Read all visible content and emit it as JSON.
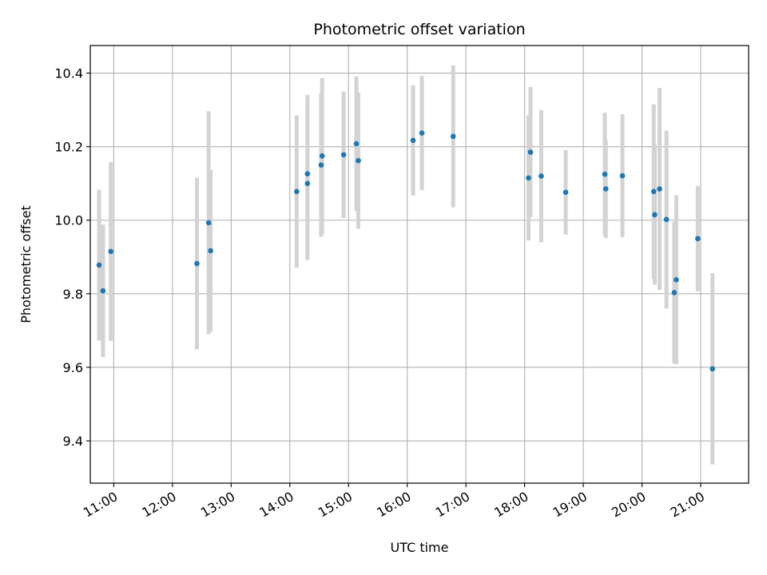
{
  "chart_data": {
    "type": "scatter",
    "title": "Photometric offset variation",
    "xlabel": "UTC time",
    "ylabel": "Photometric offset",
    "xlim": [
      "10:36",
      "21:49"
    ],
    "ylim": [
      9.285,
      10.475
    ],
    "grid": true,
    "x_ticks": [
      "11:00",
      "12:00",
      "13:00",
      "14:00",
      "15:00",
      "16:00",
      "17:00",
      "18:00",
      "19:00",
      "20:00",
      "21:00"
    ],
    "y_ticks": [
      "9.4",
      "9.6",
      "9.8",
      "10.0",
      "10.2",
      "10.4"
    ],
    "colors": {
      "points": "#1f77b4",
      "error_bars": "#d3d3d3",
      "grid": "#b0b0b0"
    },
    "series": [
      {
        "x": [
          "10:45",
          "10:49",
          "10:57",
          "12:25",
          "12:37",
          "12:39",
          "14:07",
          "14:18",
          "14:18",
          "14:32",
          "14:33",
          "14:55",
          "15:08",
          "15:10",
          "16:06",
          "16:15",
          "16:47",
          "18:04",
          "18:06",
          "18:17",
          "18:42",
          "19:22",
          "19:23",
          "19:40",
          "20:12",
          "20:13",
          "20:18",
          "20:25",
          "20:33",
          "20:35",
          "20:57",
          "21:12"
        ],
        "y": [
          9.878,
          9.808,
          9.915,
          9.882,
          9.993,
          9.917,
          10.078,
          10.1,
          10.126,
          10.15,
          10.175,
          10.178,
          10.208,
          10.162,
          10.217,
          10.237,
          10.228,
          10.115,
          10.185,
          10.12,
          10.076,
          10.125,
          10.085,
          10.121,
          10.078,
          10.015,
          10.085,
          10.002,
          9.803,
          9.838,
          9.95,
          9.596
        ],
        "error": [
          0.205,
          0.18,
          0.243,
          0.233,
          0.303,
          0.22,
          0.207,
          0.208,
          0.215,
          0.195,
          0.212,
          0.172,
          0.183,
          0.185,
          0.15,
          0.155,
          0.193,
          0.17,
          0.177,
          0.18,
          0.115,
          0.167,
          0.133,
          0.167,
          0.237,
          0.19,
          0.275,
          0.242,
          0.193,
          0.23,
          0.143,
          0.26
        ]
      }
    ]
  }
}
